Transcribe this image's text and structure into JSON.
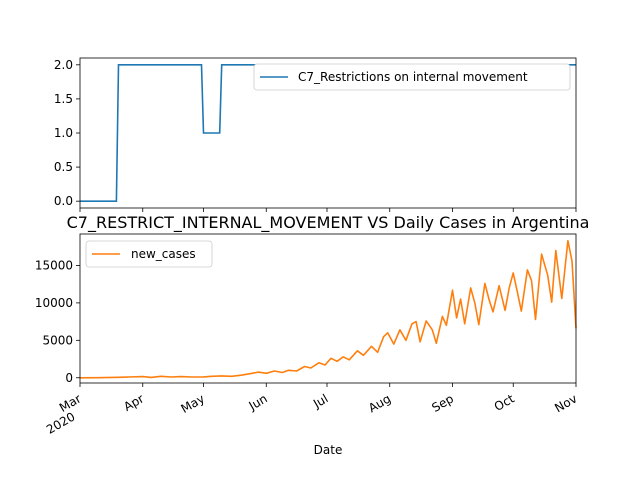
{
  "chart_data": [
    {
      "type": "line",
      "title": "",
      "xlabel": "",
      "ylabel": "",
      "x_start": "2020-03-01",
      "x_end": "2020-11-01",
      "ylim": [
        -0.1,
        2.1
      ],
      "yticks": [
        "0.0",
        "0.5",
        "1.0",
        "1.5",
        "2.0"
      ],
      "grid": false,
      "legend_position": "upper right",
      "series": [
        {
          "name": "C7_Restrictions on internal movement",
          "color": "#1f77b4",
          "step_points": [
            [
              "2020-03-01",
              0
            ],
            [
              "2020-03-19",
              0
            ],
            [
              "2020-03-20",
              2
            ],
            [
              "2020-04-30",
              2
            ],
            [
              "2020-05-01",
              1
            ],
            [
              "2020-05-09",
              1
            ],
            [
              "2020-05-10",
              2
            ],
            [
              "2020-11-01",
              2
            ]
          ]
        }
      ]
    },
    {
      "type": "line",
      "title": "C7_RESTRICT_INTERNAL_MOVEMENT VS Daily Cases in Argentina",
      "xlabel": "Date",
      "ylabel": "",
      "x_start": "2020-03-01",
      "x_end": "2020-11-01",
      "ylim": [
        -700,
        19200
      ],
      "yticks": [
        "0",
        "5000",
        "10000",
        "15000"
      ],
      "xticks": [
        {
          "date": "2020-03-01",
          "label": "Mar",
          "sublabel": "2020"
        },
        {
          "date": "2020-04-01",
          "label": "Apr"
        },
        {
          "date": "2020-05-01",
          "label": "May"
        },
        {
          "date": "2020-06-01",
          "label": "Jun"
        },
        {
          "date": "2020-07-01",
          "label": "Jul"
        },
        {
          "date": "2020-08-01",
          "label": "Aug"
        },
        {
          "date": "2020-09-01",
          "label": "Sep"
        },
        {
          "date": "2020-10-01",
          "label": "Oct"
        },
        {
          "date": "2020-11-01",
          "label": "Nov"
        }
      ],
      "grid": false,
      "legend_position": "upper left",
      "series": [
        {
          "name": "new_cases",
          "color": "#ff7f0e",
          "points": [
            [
              "2020-03-01",
              0
            ],
            [
              "2020-03-10",
              5
            ],
            [
              "2020-03-20",
              60
            ],
            [
              "2020-03-25",
              100
            ],
            [
              "2020-04-01",
              150
            ],
            [
              "2020-04-05",
              50
            ],
            [
              "2020-04-10",
              200
            ],
            [
              "2020-04-15",
              100
            ],
            [
              "2020-04-20",
              150
            ],
            [
              "2020-04-25",
              100
            ],
            [
              "2020-05-01",
              120
            ],
            [
              "2020-05-05",
              200
            ],
            [
              "2020-05-10",
              250
            ],
            [
              "2020-05-15",
              200
            ],
            [
              "2020-05-20",
              350
            ],
            [
              "2020-05-25",
              600
            ],
            [
              "2020-05-28",
              750
            ],
            [
              "2020-06-01",
              600
            ],
            [
              "2020-06-05",
              900
            ],
            [
              "2020-06-09",
              700
            ],
            [
              "2020-06-12",
              1000
            ],
            [
              "2020-06-16",
              900
            ],
            [
              "2020-06-20",
              1500
            ],
            [
              "2020-06-23",
              1300
            ],
            [
              "2020-06-27",
              2000
            ],
            [
              "2020-06-30",
              1700
            ],
            [
              "2020-07-03",
              2600
            ],
            [
              "2020-07-06",
              2200
            ],
            [
              "2020-07-09",
              2800
            ],
            [
              "2020-07-12",
              2400
            ],
            [
              "2020-07-16",
              3600
            ],
            [
              "2020-07-19",
              3000
            ],
            [
              "2020-07-23",
              4200
            ],
            [
              "2020-07-26",
              3400
            ],
            [
              "2020-07-29",
              5500
            ],
            [
              "2020-07-31",
              6000
            ],
            [
              "2020-08-03",
              4500
            ],
            [
              "2020-08-06",
              6400
            ],
            [
              "2020-08-09",
              5000
            ],
            [
              "2020-08-12",
              7200
            ],
            [
              "2020-08-14",
              7500
            ],
            [
              "2020-08-16",
              4800
            ],
            [
              "2020-08-19",
              7600
            ],
            [
              "2020-08-22",
              6400
            ],
            [
              "2020-08-24",
              4600
            ],
            [
              "2020-08-27",
              8200
            ],
            [
              "2020-08-29",
              7000
            ],
            [
              "2020-09-01",
              11700
            ],
            [
              "2020-09-03",
              8000
            ],
            [
              "2020-09-05",
              10500
            ],
            [
              "2020-09-07",
              7200
            ],
            [
              "2020-09-10",
              12000
            ],
            [
              "2020-09-12",
              10000
            ],
            [
              "2020-09-14",
              7100
            ],
            [
              "2020-09-17",
              12600
            ],
            [
              "2020-09-19",
              10500
            ],
            [
              "2020-09-21",
              8800
            ],
            [
              "2020-09-24",
              12300
            ],
            [
              "2020-09-27",
              9000
            ],
            [
              "2020-09-29",
              12000
            ],
            [
              "2020-10-01",
              14000
            ],
            [
              "2020-10-03",
              11500
            ],
            [
              "2020-10-05",
              8900
            ],
            [
              "2020-10-08",
              14400
            ],
            [
              "2020-10-10",
              13000
            ],
            [
              "2020-10-12",
              7800
            ],
            [
              "2020-10-15",
              16500
            ],
            [
              "2020-10-18",
              13700
            ],
            [
              "2020-10-20",
              10100
            ],
            [
              "2020-10-22",
              17000
            ],
            [
              "2020-10-25",
              10600
            ],
            [
              "2020-10-28",
              18300
            ],
            [
              "2020-10-30",
              15600
            ],
            [
              "2020-11-01",
              6600
            ]
          ]
        }
      ]
    }
  ]
}
